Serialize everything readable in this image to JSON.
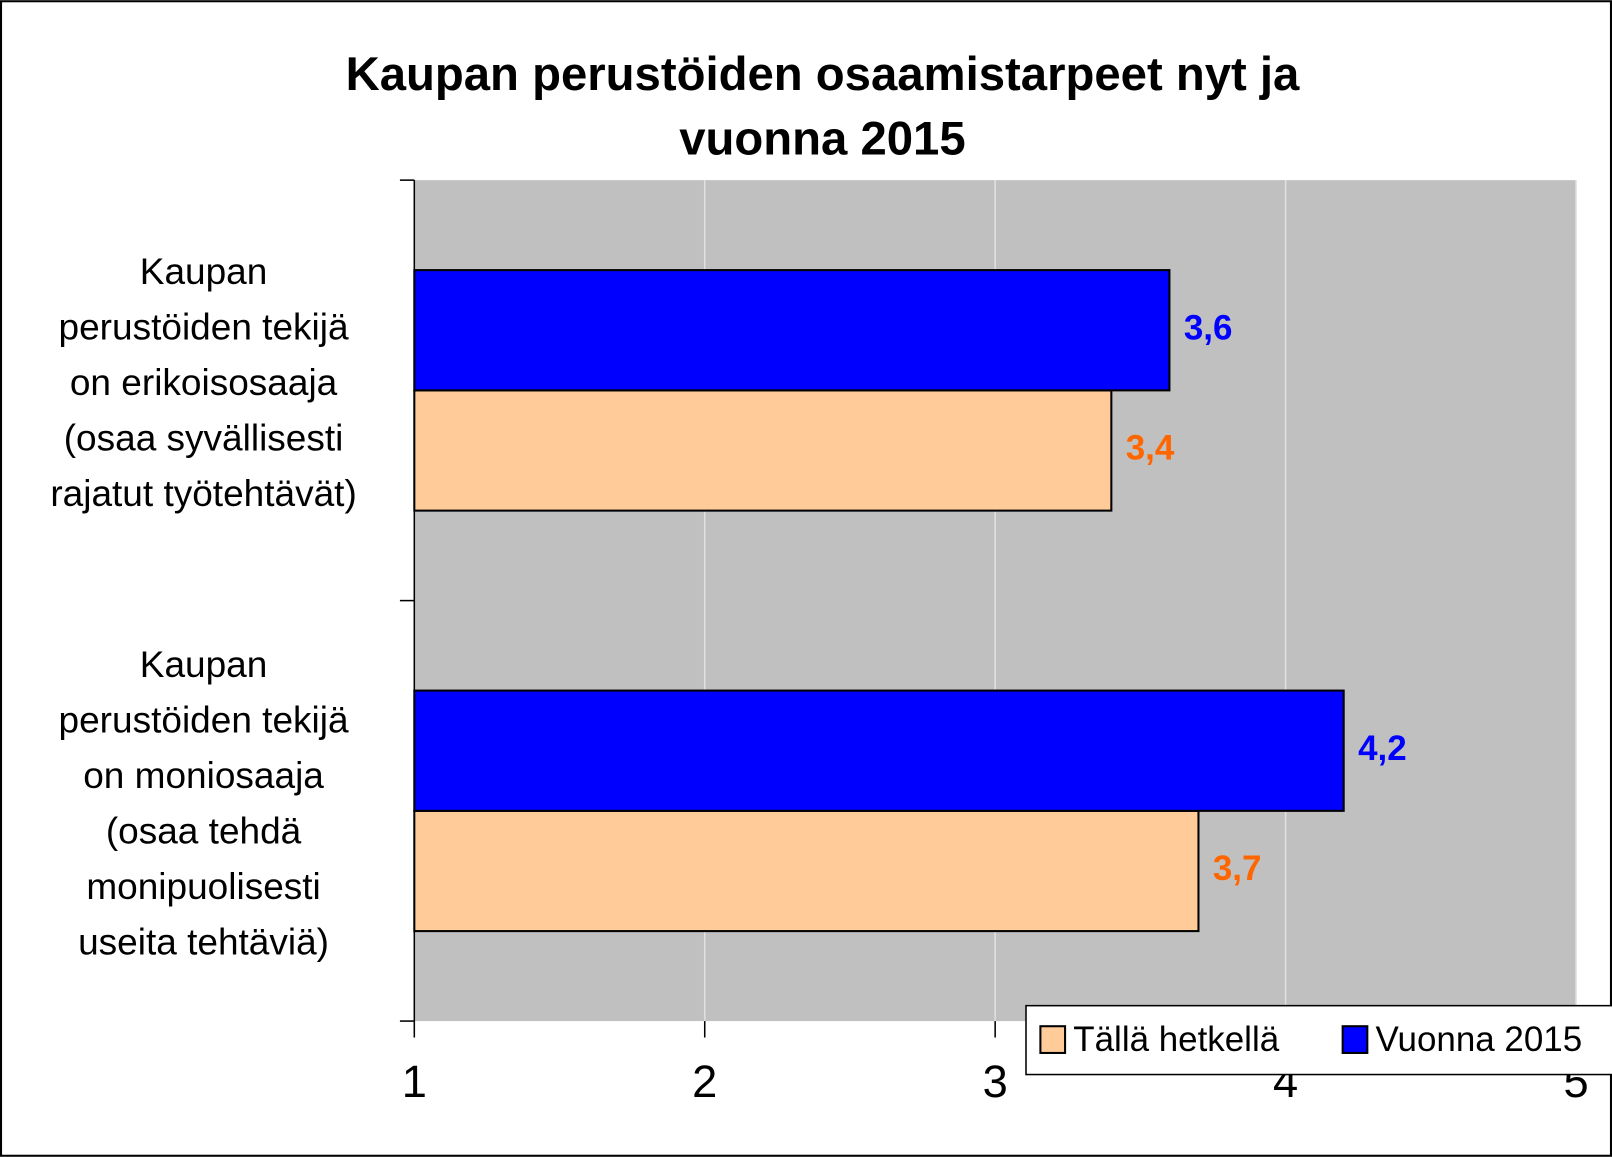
{
  "chart_data": {
    "type": "barh",
    "title": "Kaupan perustöiden osaamistarpeet nyt ja\nvuonna 2015",
    "categories": [
      "Kaupan\nperustöiden tekijä\non erikoisosaaja\n(osaa syvällisesti\nrajatut työtehtävät)",
      "Kaupan\nperustöiden tekijä\non moniosaaja\n(osaa tehdä\nmonipuolisesti\nuseita tehtäviä)"
    ],
    "series": [
      {
        "name": "Tällä hetkellä",
        "color": "#FFCC99",
        "label_color": "#FF6600",
        "values": [
          3.4,
          3.7
        ],
        "value_labels": [
          "3,4",
          "3,7"
        ]
      },
      {
        "name": "Vuonna 2015",
        "color": "#0000FF",
        "label_color": "#0000FF",
        "values": [
          3.6,
          4.2
        ],
        "value_labels": [
          "3,6",
          "4,2"
        ]
      }
    ],
    "xlim": [
      1,
      5
    ],
    "xticks": [
      1,
      2,
      3,
      4,
      5
    ],
    "grid": true,
    "legend": "lower right",
    "plot_background": "#C0C0C0"
  }
}
